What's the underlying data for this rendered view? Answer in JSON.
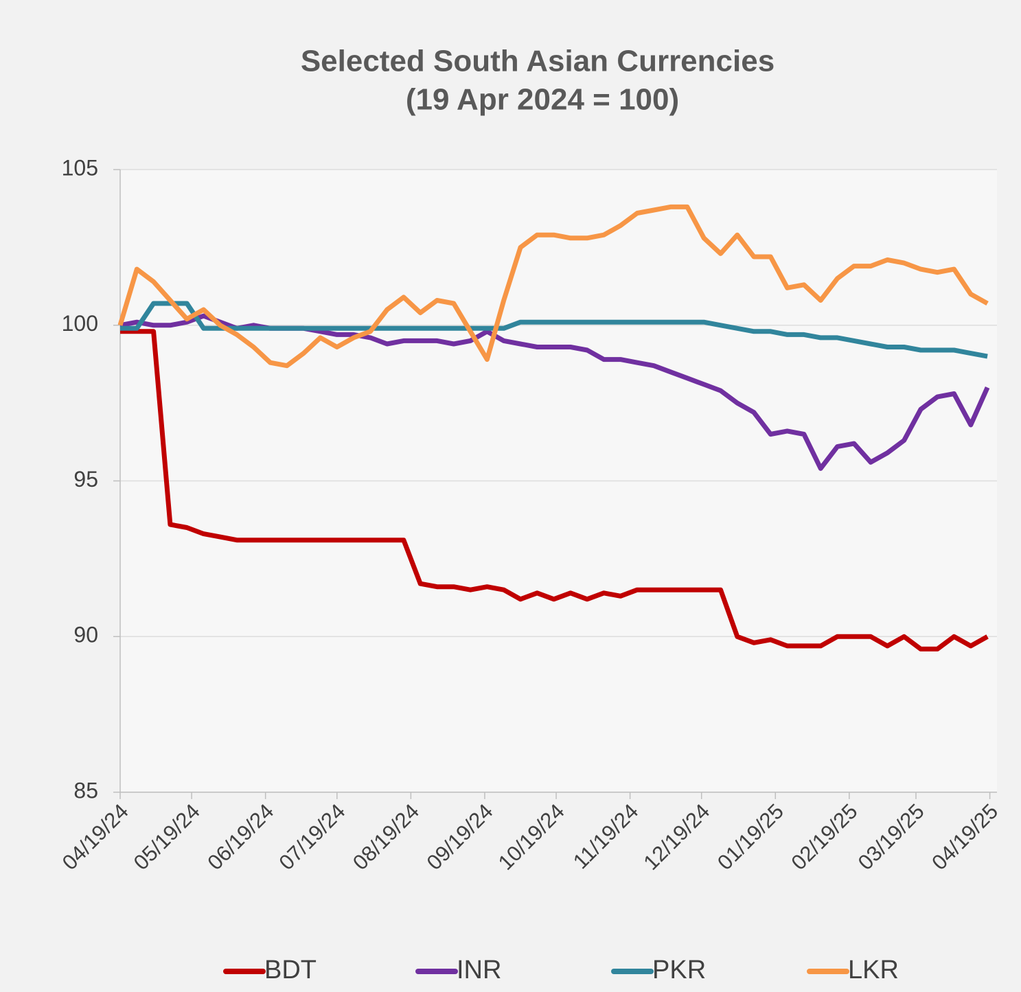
{
  "chart_data": {
    "type": "line",
    "title": "Selected South Asian Currencies",
    "subtitle": "(19 Apr 2024 = 100)",
    "x": [
      "2024-04-19",
      "2024-04-26",
      "2024-05-03",
      "2024-05-10",
      "2024-05-17",
      "2024-05-24",
      "2024-05-31",
      "2024-06-07",
      "2024-06-14",
      "2024-06-21",
      "2024-06-28",
      "2024-07-05",
      "2024-07-12",
      "2024-07-19",
      "2024-07-26",
      "2024-08-02",
      "2024-08-09",
      "2024-08-16",
      "2024-08-23",
      "2024-08-30",
      "2024-09-06",
      "2024-09-13",
      "2024-09-20",
      "2024-09-27",
      "2024-10-04",
      "2024-10-11",
      "2024-10-18",
      "2024-10-25",
      "2024-11-01",
      "2024-11-08",
      "2024-11-15",
      "2024-11-22",
      "2024-11-29",
      "2024-12-06",
      "2024-12-13",
      "2024-12-20",
      "2024-12-27",
      "2025-01-03",
      "2025-01-10",
      "2025-01-17",
      "2025-01-24",
      "2025-01-31",
      "2025-02-07",
      "2025-02-14",
      "2025-02-21",
      "2025-02-28",
      "2025-03-07",
      "2025-03-14",
      "2025-03-21",
      "2025-03-28",
      "2025-04-04",
      "2025-04-11",
      "2025-04-18"
    ],
    "series": [
      {
        "name": "BDT",
        "color": "#c00000",
        "values": [
          99.8,
          99.8,
          99.8,
          93.6,
          93.5,
          93.3,
          93.2,
          93.1,
          93.1,
          93.1,
          93.1,
          93.1,
          93.1,
          93.1,
          93.1,
          93.1,
          93.1,
          93.1,
          91.7,
          91.6,
          91.6,
          91.5,
          91.6,
          91.5,
          91.2,
          91.4,
          91.2,
          91.4,
          91.2,
          91.4,
          91.3,
          91.5,
          91.5,
          91.5,
          91.5,
          91.5,
          91.5,
          90.0,
          89.8,
          89.9,
          89.7,
          89.7,
          89.7,
          90.0,
          90.0,
          90.0,
          89.7,
          90.0,
          89.6,
          89.6,
          90.0,
          89.7,
          90.0
        ]
      },
      {
        "name": "INR",
        "color": "#7030a0",
        "values": [
          100.0,
          100.1,
          100.0,
          100.0,
          100.1,
          100.3,
          100.1,
          99.9,
          100.0,
          99.9,
          99.9,
          99.9,
          99.8,
          99.7,
          99.7,
          99.6,
          99.4,
          99.5,
          99.5,
          99.5,
          99.4,
          99.5,
          99.8,
          99.5,
          99.4,
          99.3,
          99.3,
          99.3,
          99.2,
          98.9,
          98.9,
          98.8,
          98.7,
          98.5,
          98.3,
          98.1,
          97.9,
          97.5,
          97.2,
          96.5,
          96.6,
          96.5,
          95.4,
          96.1,
          96.2,
          95.6,
          95.9,
          96.3,
          97.3,
          97.7,
          97.8,
          96.8,
          98.0
        ]
      },
      {
        "name": "PKR",
        "color": "#31859c",
        "values": [
          99.9,
          99.9,
          100.7,
          100.7,
          100.7,
          99.9,
          99.9,
          99.9,
          99.9,
          99.9,
          99.9,
          99.9,
          99.9,
          99.9,
          99.9,
          99.9,
          99.9,
          99.9,
          99.9,
          99.9,
          99.9,
          99.9,
          99.9,
          99.9,
          100.1,
          100.1,
          100.1,
          100.1,
          100.1,
          100.1,
          100.1,
          100.1,
          100.1,
          100.1,
          100.1,
          100.1,
          100.0,
          99.9,
          99.8,
          99.8,
          99.7,
          99.7,
          99.6,
          99.6,
          99.5,
          99.4,
          99.3,
          99.3,
          99.2,
          99.2,
          99.2,
          99.1,
          99.0
        ]
      },
      {
        "name": "LKR",
        "color": "#f79646",
        "values": [
          100.0,
          101.8,
          101.4,
          100.8,
          100.2,
          100.5,
          100.0,
          99.7,
          99.3,
          98.8,
          98.7,
          99.1,
          99.6,
          99.3,
          99.6,
          99.8,
          100.5,
          100.9,
          100.4,
          100.8,
          100.7,
          99.8,
          98.9,
          100.8,
          102.5,
          102.9,
          102.9,
          102.8,
          102.8,
          102.9,
          103.2,
          103.6,
          103.7,
          103.8,
          103.8,
          102.8,
          102.3,
          102.9,
          102.2,
          102.2,
          101.2,
          101.3,
          100.8,
          101.5,
          101.9,
          101.9,
          102.1,
          102.0,
          101.8,
          101.7,
          101.8,
          101.0,
          100.7
        ]
      }
    ],
    "xlim": [
      "2024-04-19",
      "2025-04-22"
    ],
    "xticks": [
      {
        "value": "2024-04-19",
        "label": "04/19/24"
      },
      {
        "value": "2024-05-19",
        "label": "05/19/24"
      },
      {
        "value": "2024-06-19",
        "label": "06/19/24"
      },
      {
        "value": "2024-07-19",
        "label": "07/19/24"
      },
      {
        "value": "2024-08-19",
        "label": "08/19/24"
      },
      {
        "value": "2024-09-19",
        "label": "09/19/24"
      },
      {
        "value": "2024-10-19",
        "label": "10/19/24"
      },
      {
        "value": "2024-11-19",
        "label": "11/19/24"
      },
      {
        "value": "2024-12-19",
        "label": "12/19/24"
      },
      {
        "value": "2025-01-19",
        "label": "01/19/25"
      },
      {
        "value": "2025-02-19",
        "label": "02/19/25"
      },
      {
        "value": "2025-03-19",
        "label": "03/19/25"
      },
      {
        "value": "2025-04-19",
        "label": "04/19/25"
      }
    ],
    "ylim": [
      85,
      105
    ],
    "yticks": [
      85,
      90,
      95,
      100,
      105
    ],
    "grid": true,
    "legend": "bottom"
  }
}
